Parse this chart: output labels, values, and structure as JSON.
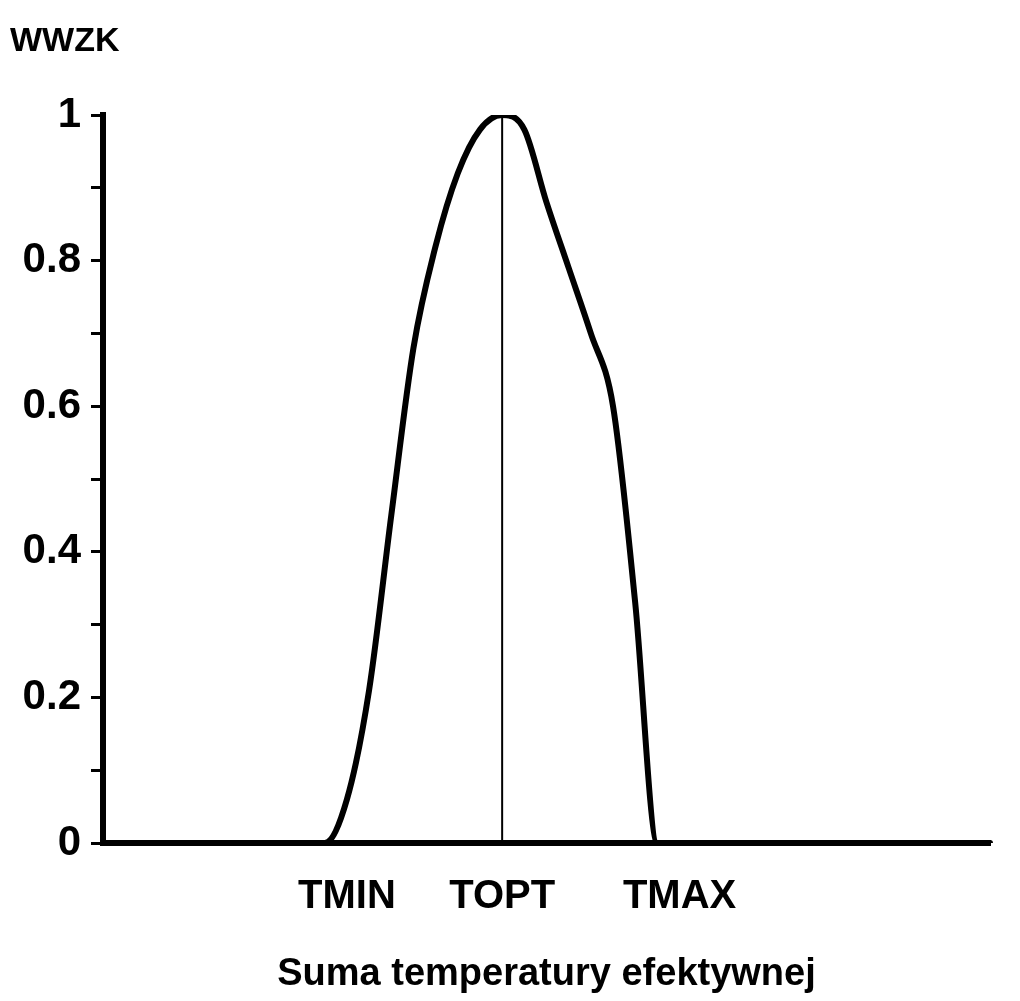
{
  "chart_data": {
    "type": "line",
    "ylabel": "WWZK",
    "xlabel": "Suma temperatury efektywnej",
    "categories": [
      null,
      null,
      null,
      null,
      null,
      null,
      null,
      null,
      null,
      null,
      null,
      "TMIN",
      null,
      null,
      null,
      null,
      null,
      null,
      "TOPT",
      null,
      null,
      null,
      null,
      null,
      null,
      null,
      "TMAX",
      null,
      null,
      null,
      null,
      null,
      null,
      null,
      null,
      null,
      null,
      null,
      null,
      null,
      null
    ],
    "values": [
      0,
      0,
      0,
      0,
      0,
      0,
      0,
      0,
      0,
      0,
      0,
      0.06,
      0.21,
      0.45,
      0.68,
      0.82,
      0.92,
      0.98,
      1,
      0.98,
      0.88,
      0.79,
      0.7,
      0.6,
      0.33,
      0,
      0,
      0,
      0,
      0,
      0,
      0,
      0,
      0,
      0,
      0,
      0,
      0,
      0,
      0,
      0
    ],
    "color": "#000000",
    "marker": "none",
    "line_style": "solid",
    "grid": false,
    "ylim": [
      0,
      1
    ],
    "yticks": [
      0,
      {
        "value": 0.1,
        "label": null
      },
      0.2,
      {
        "value": 0.3,
        "label": null
      },
      0.4,
      {
        "value": 0.5,
        "label": null
      },
      0.6,
      {
        "value": 0.7,
        "label": null
      },
      0.8,
      {
        "value": 0.9,
        "label": null
      },
      1
    ],
    "ref_lines": [
      {
        "axis": "x",
        "value": "TOPT",
        "color": "#000000"
      }
    ]
  }
}
